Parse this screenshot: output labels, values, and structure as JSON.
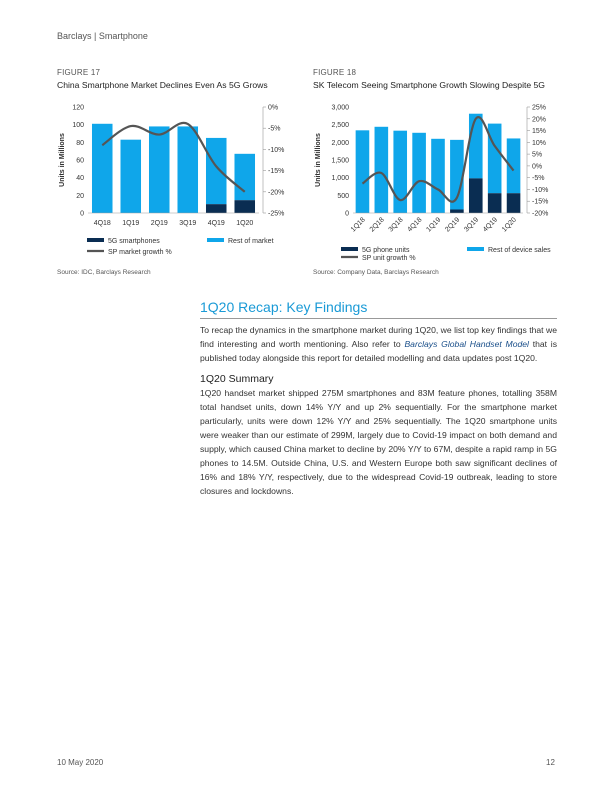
{
  "header": {
    "text": "Barclays | Smartphone"
  },
  "figures": [
    {
      "label": "FIGURE 17",
      "title": "China Smartphone Market Declines Even As 5G Grows",
      "source": "Source: IDC, Barclays Research"
    },
    {
      "label": "FIGURE 18",
      "title": "SK Telecom Seeing Smartphone Growth Slowing Despite 5G",
      "source": "Source: Company Data, Barclays Research"
    }
  ],
  "colors": {
    "navy": "#0a2d52",
    "cyan": "#0fa6ea",
    "line": "#555555",
    "accent": "#1a9ad6"
  },
  "chart_data": [
    {
      "type": "bar",
      "stacked": true,
      "categories": [
        "4Q18",
        "1Q19",
        "2Q19",
        "3Q19",
        "4Q19",
        "1Q20"
      ],
      "ylabel": "Units in Millions",
      "ylim": [
        0,
        120
      ],
      "yticks": [
        "0",
        "20",
        "40",
        "60",
        "80",
        "100",
        "120"
      ],
      "y2lim": [
        -25,
        0
      ],
      "y2ticks": [
        "0%",
        "-5%",
        "-10%",
        "-15%",
        "-20%",
        "-25%"
      ],
      "series": [
        {
          "name": "5G smartphones",
          "values": [
            0,
            0,
            0,
            0,
            10,
            14.5
          ]
        },
        {
          "name": "Rest of market",
          "values": [
            101,
            83,
            98,
            98,
            75,
            52.5
          ]
        },
        {
          "name": "SP market growth %",
          "axis": "secondary",
          "values": [
            -9,
            -4.5,
            -6.5,
            -4,
            -14,
            -20
          ]
        }
      ]
    },
    {
      "type": "bar",
      "stacked": true,
      "categories": [
        "1Q18",
        "2Q18",
        "3Q18",
        "4Q18",
        "1Q19",
        "2Q19",
        "3Q19",
        "4Q19",
        "1Q20"
      ],
      "ylabel": "Units in Millions",
      "ylim": [
        0,
        3000
      ],
      "yticks": [
        "0",
        "500",
        "1,000",
        "1,500",
        "2,000",
        "2,500",
        "3,000"
      ],
      "y2lim": [
        -20,
        25
      ],
      "y2ticks": [
        "25%",
        "20%",
        "15%",
        "10%",
        "5%",
        "0%",
        "-5%",
        "-10%",
        "-15%",
        "-20%"
      ],
      "series": [
        {
          "name": "5G phone units",
          "values": [
            0,
            0,
            0,
            0,
            0,
            100,
            980,
            560,
            560
          ]
        },
        {
          "name": "Rest of device sales",
          "values": [
            2340,
            2440,
            2330,
            2270,
            2100,
            1970,
            1830,
            1970,
            1550
          ]
        },
        {
          "name": "SP unit growth %",
          "axis": "secondary",
          "values": [
            -7.5,
            -3,
            -14.5,
            -6.5,
            -10,
            -13.5,
            20,
            8.5,
            -2
          ]
        }
      ]
    }
  ],
  "recap": {
    "title": "1Q20 Recap: Key Findings",
    "intro_before": "To recap the dynamics in the smartphone market during 1Q20, we list top key findings that we find interesting and worth mentioning. Also refer to ",
    "intro_link": "Barclays Global Handset Model",
    "intro_after": " that is published today alongside this report for detailed modelling and data updates post 1Q20.",
    "summary_title": "1Q20 Summary",
    "summary_text": "1Q20 handset market shipped 275M smartphones and 83M feature phones, totalling 358M total handset units, down 14% Y/Y and up 2% sequentially. For the smartphone market particularly, units were down 12% Y/Y and 25% sequentially. The 1Q20 smartphone units were weaker than our estimate of 299M, largely due to Covid-19 impact on both demand and supply, which caused China market to decline by 20% Y/Y to 67M, despite a rapid ramp in 5G phones to 14.5M. Outside China, U.S. and Western Europe both saw significant declines of 16% and 18% Y/Y, respectively, due to the widespread Covid-19 outbreak, leading to store closures and lockdowns."
  },
  "footer": {
    "date": "10 May 2020",
    "page": "12"
  }
}
